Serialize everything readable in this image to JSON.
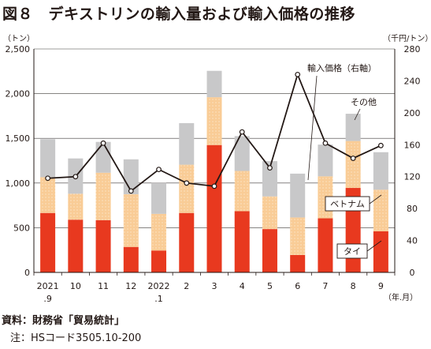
{
  "title": "図８　デキストリンの輸入量および輸入価格の推移",
  "footer": {
    "source": "資料：財務省「貿易統計」",
    "note": "注：HSコード3505.10-200"
  },
  "chart_data": {
    "type": "bar",
    "stacked": true,
    "categories": [
      [
        "2021",
        ".9"
      ],
      [
        "10"
      ],
      [
        "11"
      ],
      [
        "12"
      ],
      [
        "2022",
        ".1"
      ],
      [
        "2"
      ],
      [
        "3"
      ],
      [
        "4"
      ],
      [
        "5"
      ],
      [
        "6"
      ],
      [
        "7"
      ],
      [
        "8"
      ],
      [
        "9"
      ]
    ],
    "x_unit": "（年.月）",
    "y_left": {
      "unit": "（トン）",
      "ylim": [
        0,
        2500
      ],
      "ticks": [
        "0",
        "500",
        "1,000",
        "1,500",
        "2,000",
        "2,500"
      ],
      "tick_values": [
        0,
        500,
        1000,
        1500,
        2000,
        2500
      ]
    },
    "y_right": {
      "unit": "（千円/トン）",
      "ylim": [
        0,
        280
      ],
      "ticks": [
        "0",
        "40",
        "80",
        "120",
        "160",
        "200",
        "240",
        "280"
      ],
      "tick_values": [
        0,
        40,
        80,
        120,
        160,
        200,
        240,
        280
      ]
    },
    "series": [
      {
        "name": "タイ",
        "color": "#e8391f",
        "values": [
          665,
          590,
          585,
          285,
          245,
          665,
          1425,
          685,
          485,
          195,
          605,
          945,
          460
        ]
      },
      {
        "name": "ベトナム",
        "color": "#f9cc96",
        "values": [
          400,
          290,
          530,
          590,
          410,
          540,
          535,
          450,
          365,
          420,
          470,
          525,
          465
        ]
      },
      {
        "name": "その他",
        "color": "#c8c8c9",
        "values": [
          425,
          395,
          345,
          390,
          345,
          465,
          295,
          390,
          395,
          490,
          355,
          305,
          420
        ]
      }
    ],
    "line": {
      "name": "輸入価格（右軸）",
      "color": "#231815",
      "values": [
        118,
        120,
        162,
        102,
        129,
        112,
        108,
        176,
        131,
        248,
        162,
        143,
        159
      ]
    },
    "grid": true,
    "labels": {
      "price": "輸入価格（右軸）",
      "other": "その他",
      "vietnam": "ベトナム",
      "thai": "タイ"
    }
  }
}
